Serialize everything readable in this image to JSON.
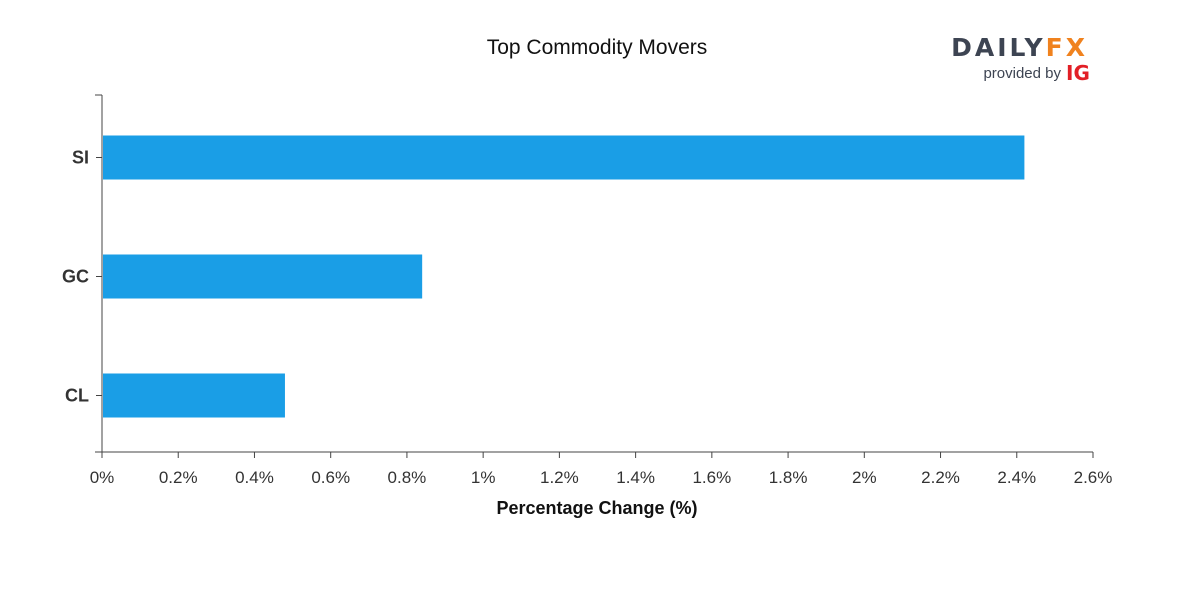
{
  "colors": {
    "bar": "#1a9ee6",
    "axis": "#444444",
    "brand_dark": "#3d4452",
    "brand_orange": "#f0821e",
    "brand_red": "#e21f26"
  },
  "logo": {
    "daily": "DAILY",
    "fx": "FX",
    "provided_by": "provided by",
    "ig": "IG"
  },
  "chart_data": {
    "type": "bar",
    "orientation": "horizontal",
    "title": "Top Commodity Movers",
    "xlabel": "Percentage Change (%)",
    "ylabel": "",
    "categories": [
      "SI",
      "GC",
      "CL"
    ],
    "values": [
      2.42,
      0.84,
      0.48
    ],
    "xlim": [
      0,
      2.6
    ],
    "xticks": [
      "0%",
      "0.2%",
      "0.4%",
      "0.6%",
      "0.8%",
      "1%",
      "1.2%",
      "1.4%",
      "1.6%",
      "1.8%",
      "2%",
      "2.2%",
      "2.4%",
      "2.6%"
    ],
    "grid": false,
    "legend": "none"
  }
}
